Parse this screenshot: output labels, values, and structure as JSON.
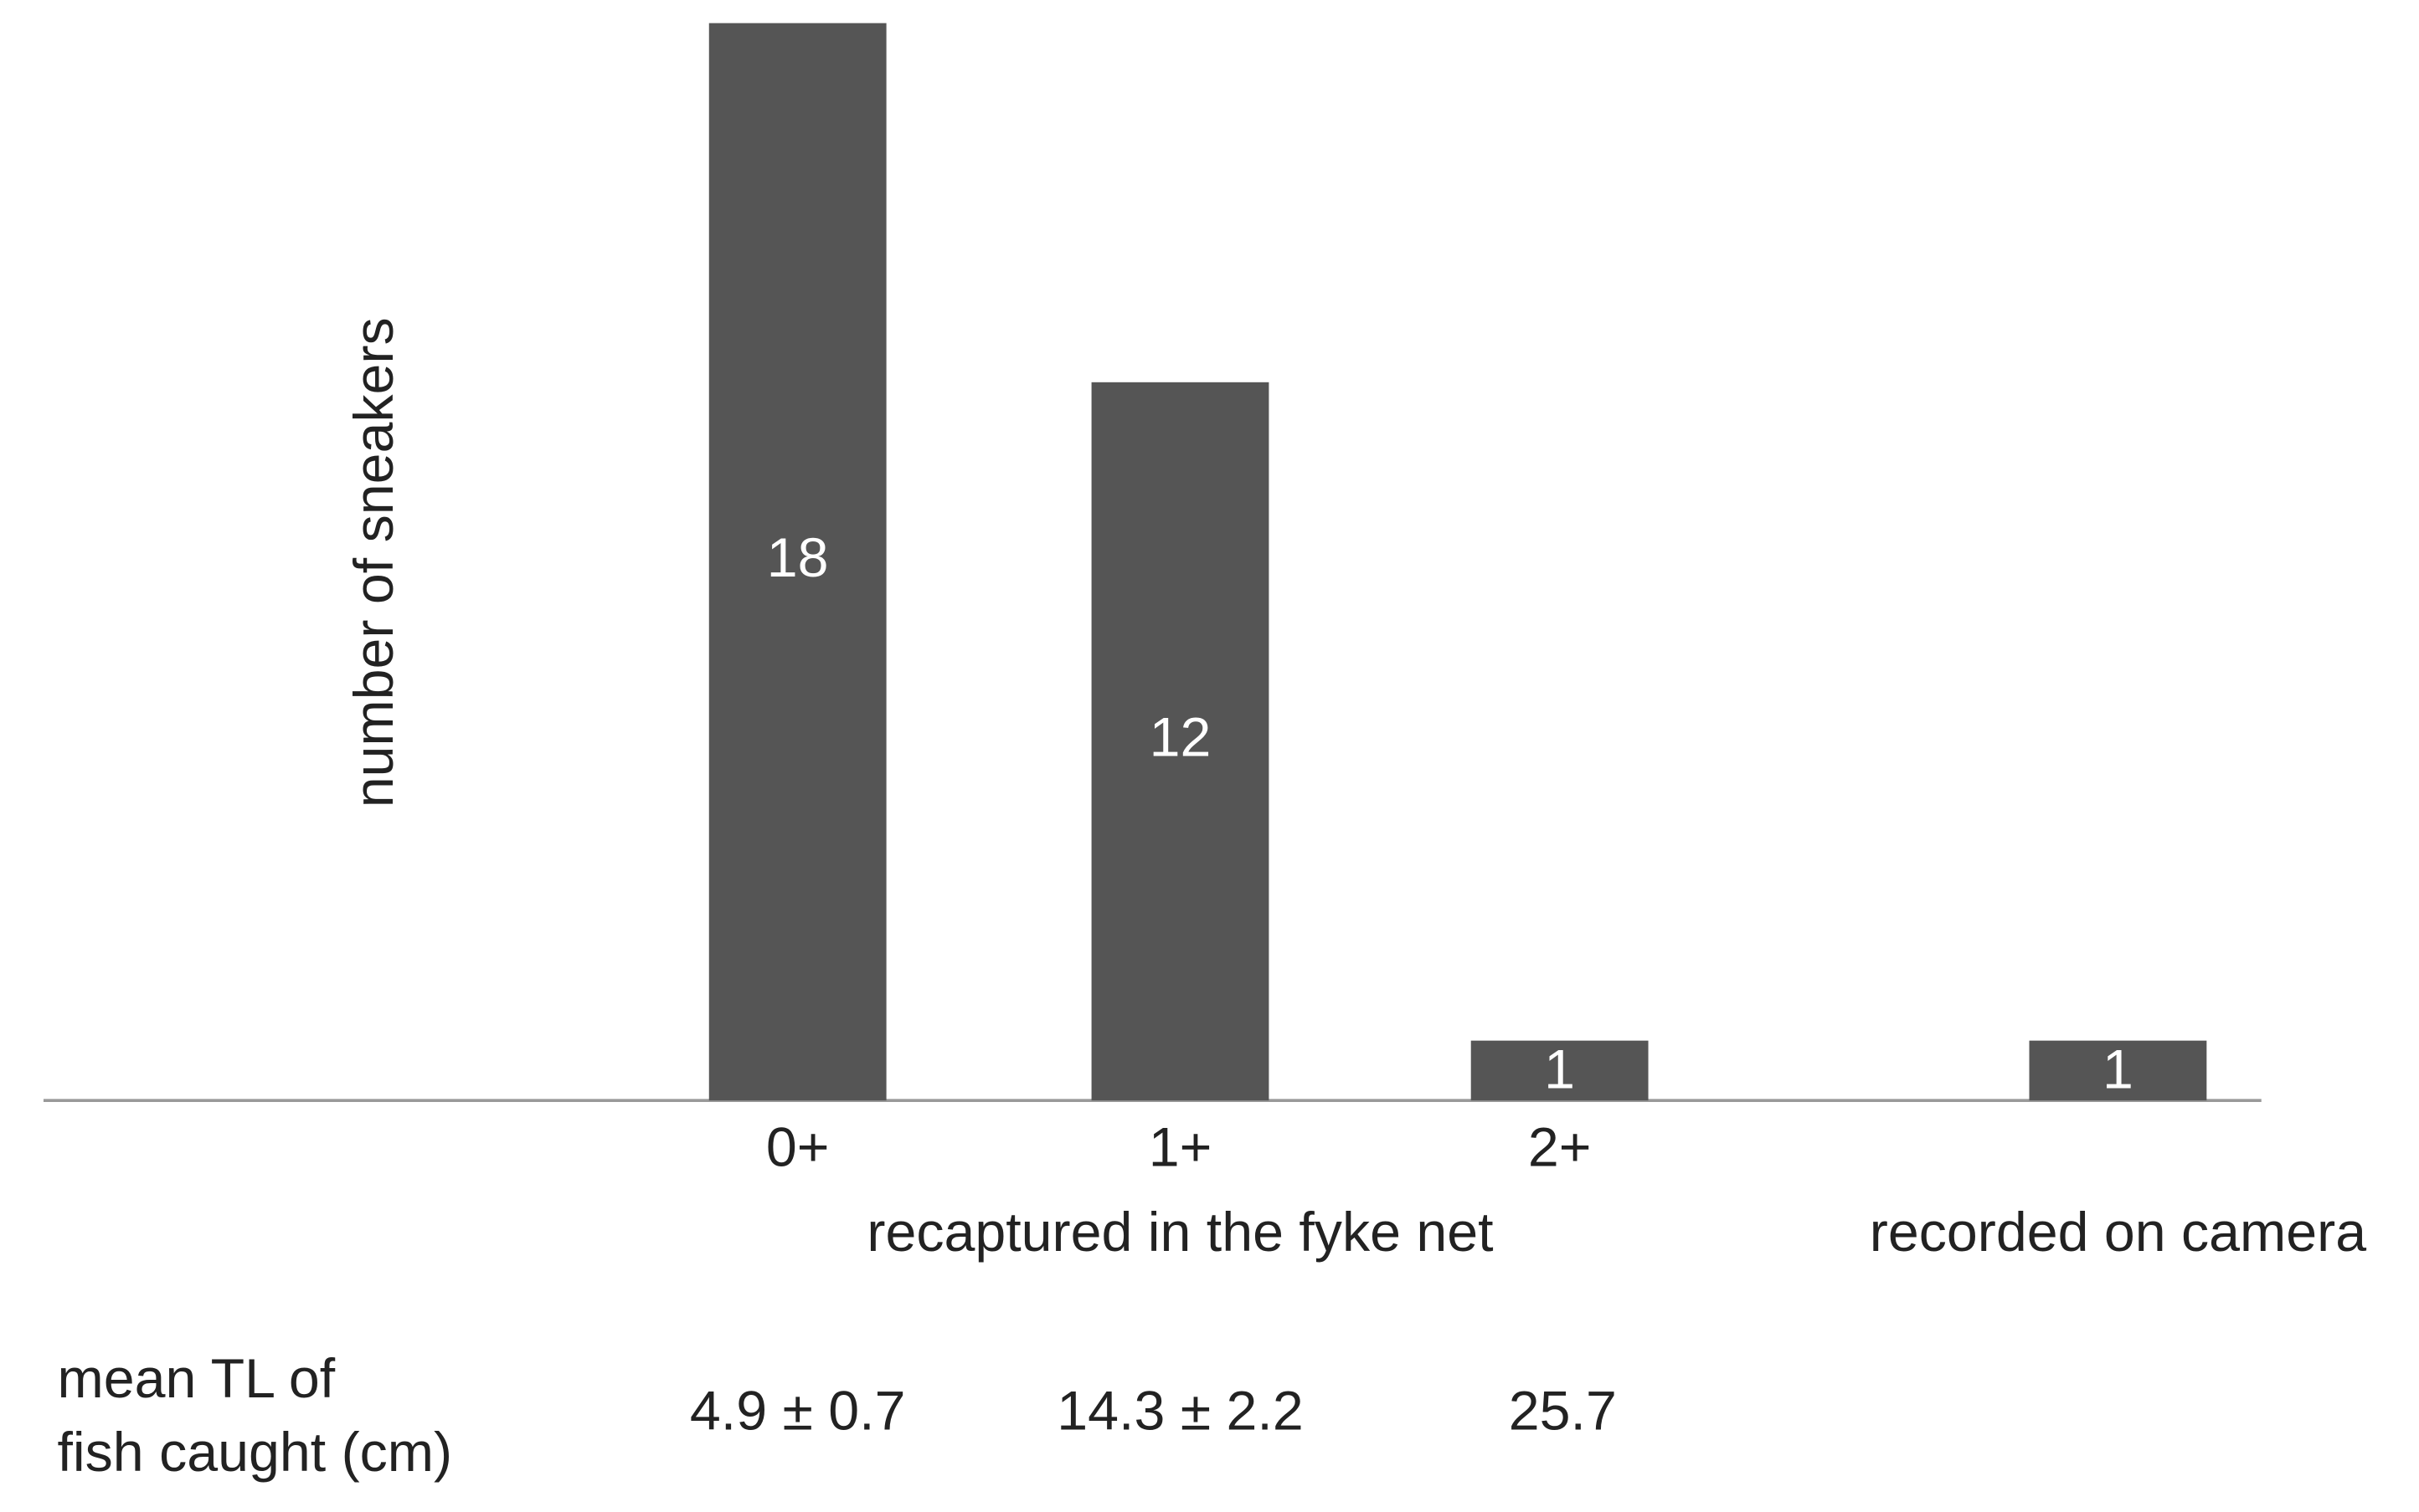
{
  "chart_data": {
    "type": "bar",
    "y_label": "number of sneakers",
    "categories": [
      "0+",
      "1+",
      "2+",
      null
    ],
    "values": [
      18,
      12,
      1,
      1
    ],
    "color": "#555555",
    "ylim": [
      0,
      18
    ],
    "groups": [
      "recaptured in the fyke net",
      "recorded on camera"
    ],
    "mean_tl_label": [
      "mean TL of",
      "fish caught (cm)"
    ],
    "mean_tl": [
      "4.9 ± 0.7",
      "14.3 ± 2.2",
      "25.7"
    ]
  }
}
